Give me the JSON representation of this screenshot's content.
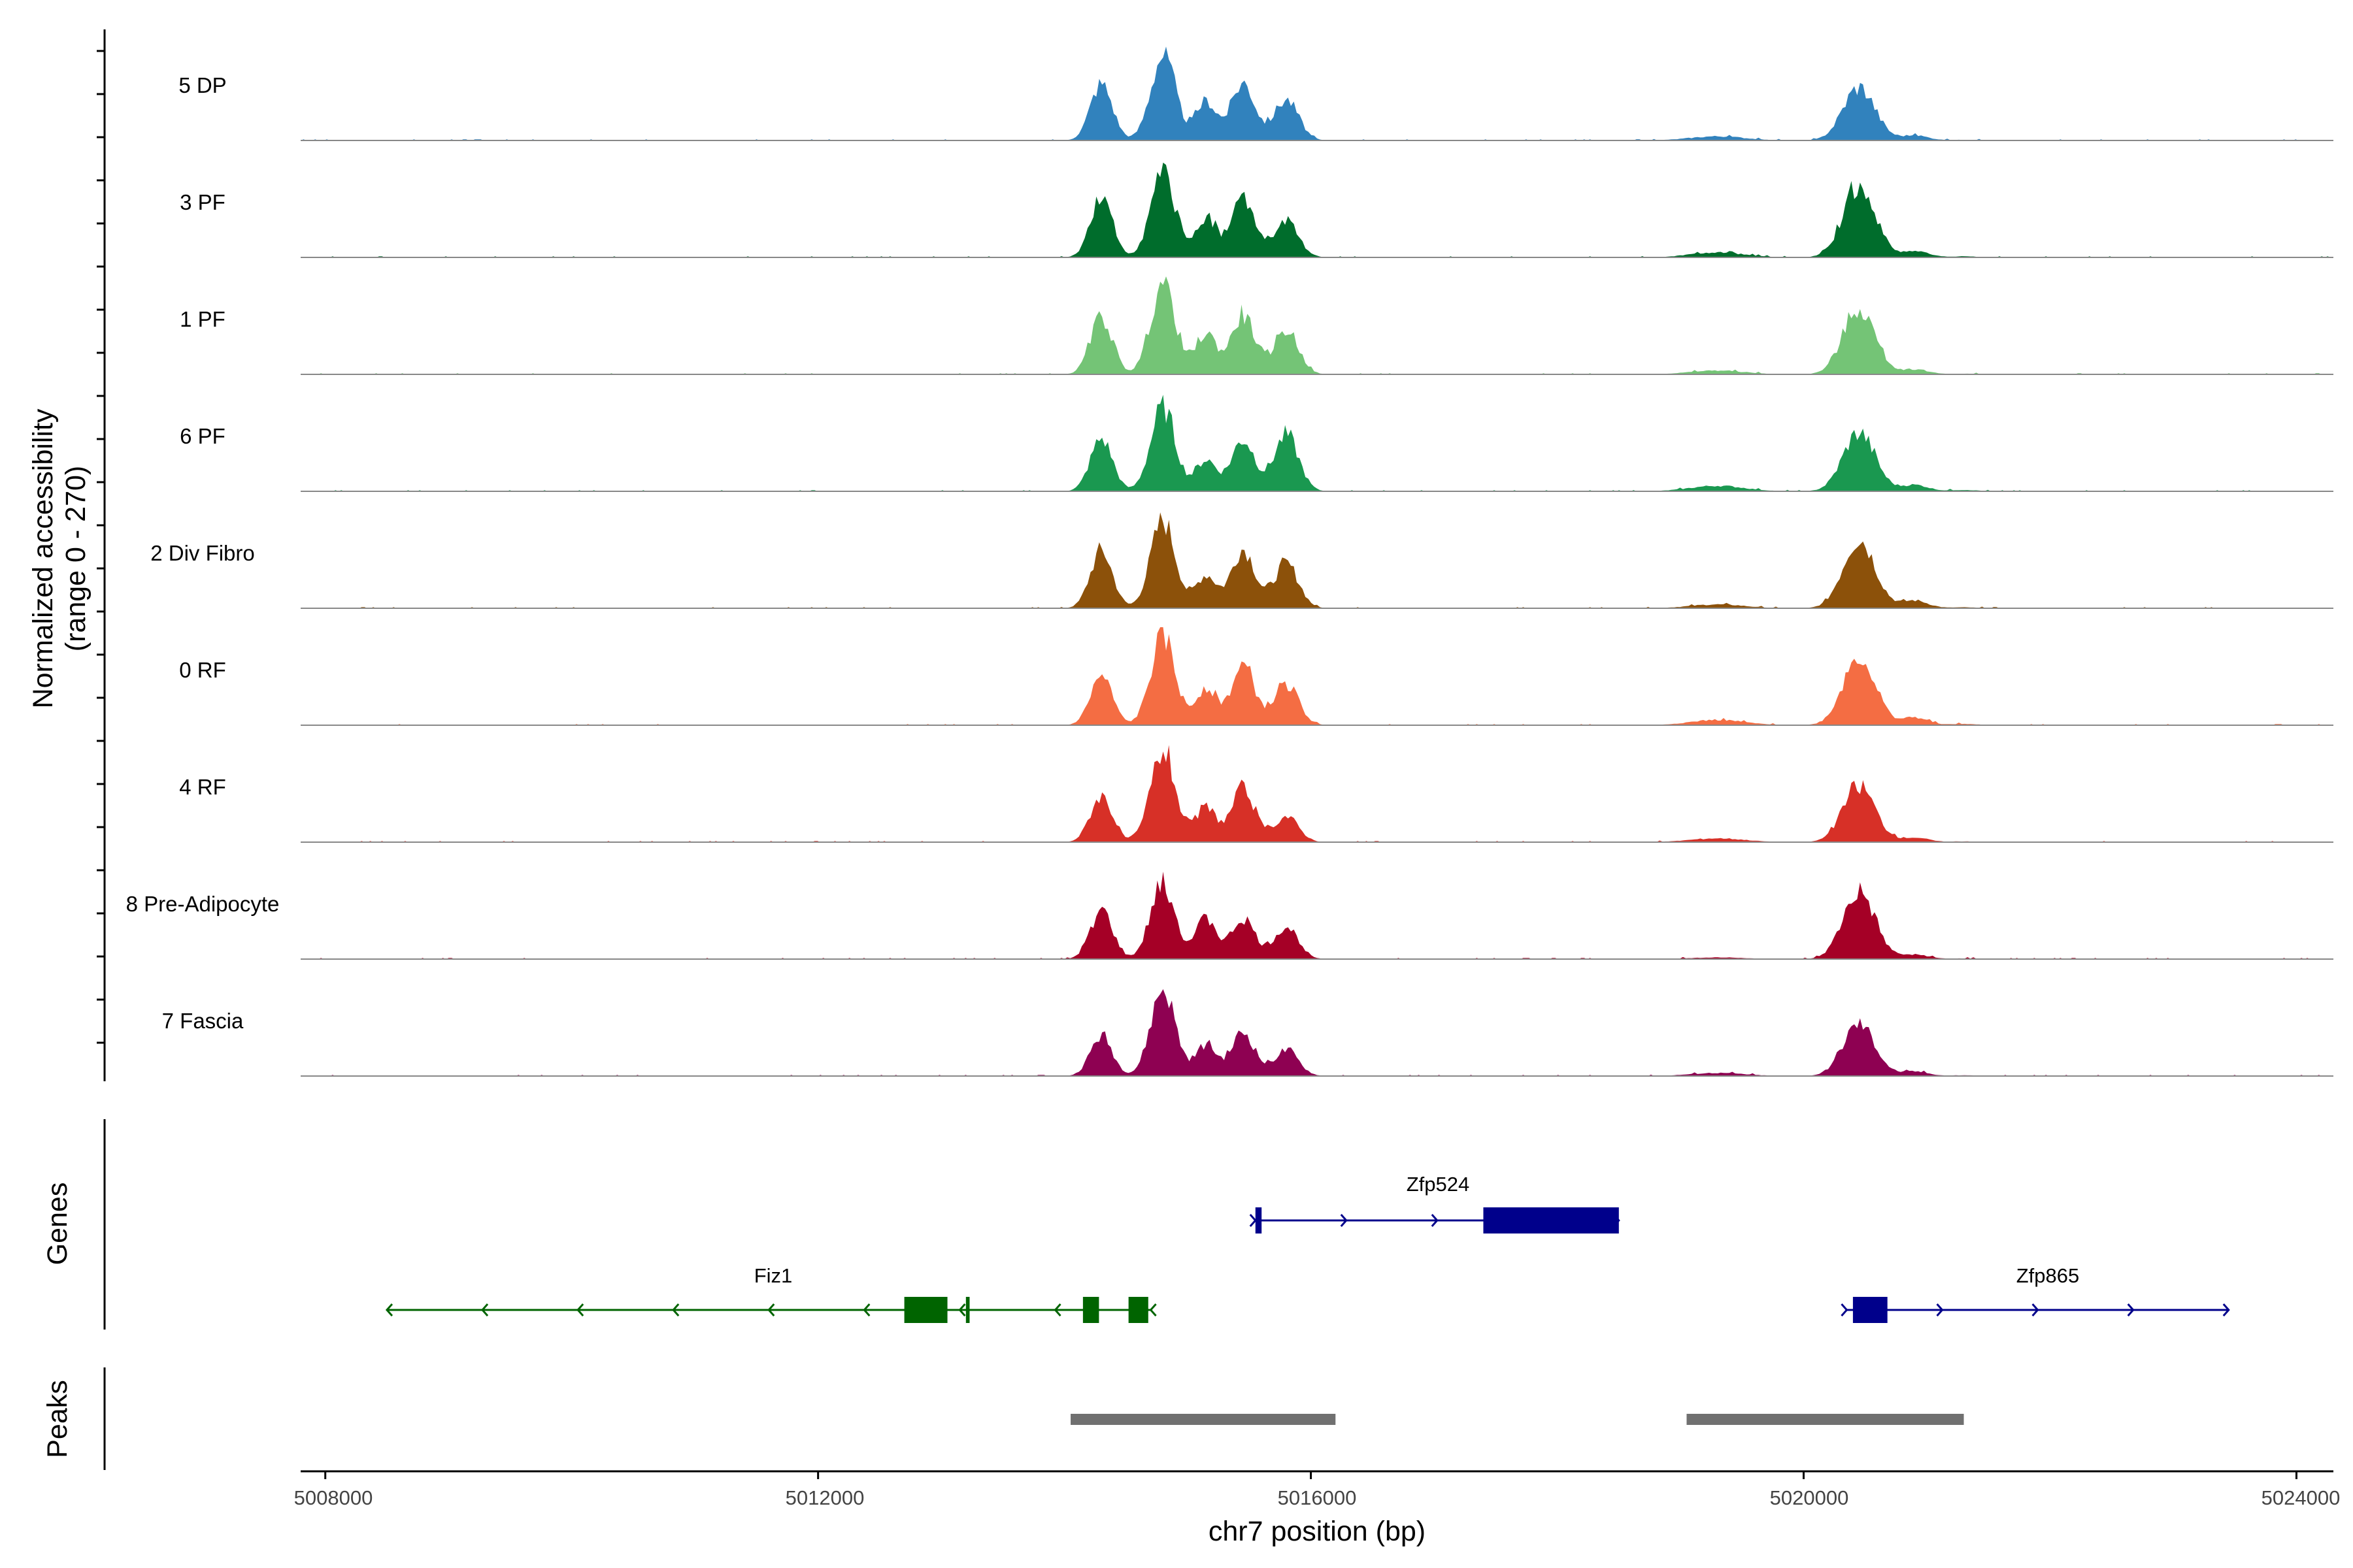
{
  "chart_data": {
    "type": "area",
    "title": "",
    "ylabel": "Normalized accessibility",
    "yrange_label": "(range 0 - 270)",
    "ylim": [
      0,
      270
    ],
    "xlabel": "chr7 position (bp)",
    "xlim": [
      5007800,
      5024300
    ],
    "xticks": [
      "5008000",
      "5012000",
      "5016000",
      "5020000",
      "5024000"
    ],
    "xtick_values": [
      5008000,
      5012000,
      5016000,
      5020000,
      5024000
    ],
    "tracks": [
      {
        "name": "5 DP",
        "color": "#3182BD",
        "peak_scale": [
          1.0,
          0.98,
          0.78,
          0.9,
          0.72,
          0.38,
          0.78,
          0.28,
          0.1
        ]
      },
      {
        "name": "3 PF",
        "color": "#006D2C",
        "peak_scale": [
          1.0,
          0.95,
          0.8,
          0.92,
          0.62,
          0.45,
          1.05,
          0.35,
          0.18
        ]
      },
      {
        "name": "1 PF",
        "color": "#74C476",
        "peak_scale": [
          1.0,
          1.05,
          0.8,
          0.92,
          0.78,
          0.35,
          0.95,
          0.28,
          0.1
        ]
      },
      {
        "name": "6 PF",
        "color": "#1A9850",
        "peak_scale": [
          0.92,
          0.95,
          0.62,
          0.8,
          0.98,
          0.5,
          0.85,
          0.35,
          0.22
        ]
      },
      {
        "name": "2 Div Fibro",
        "color": "#8C510A",
        "peak_scale": [
          1.0,
          1.0,
          0.65,
          0.92,
          0.78,
          0.35,
          1.0,
          0.42,
          0.15
        ]
      },
      {
        "name": "0 RF",
        "color": "#F46D43",
        "peak_scale": [
          0.85,
          1.0,
          0.75,
          0.92,
          0.72,
          0.48,
          1.0,
          0.42,
          0.2
        ]
      },
      {
        "name": "4 RF",
        "color": "#D73027",
        "peak_scale": [
          0.82,
          1.05,
          0.68,
          0.82,
          0.45,
          0.35,
          0.82,
          0.25,
          0.12
        ]
      },
      {
        "name": "8 Pre-Adipocyte",
        "color": "#A50026",
        "peak_scale": [
          0.85,
          0.85,
          0.8,
          0.62,
          0.55,
          0.15,
          0.95,
          0.25,
          0.1
        ]
      },
      {
        "name": "7 Fascia",
        "color": "#8E0152",
        "peak_scale": [
          0.7,
          1.0,
          0.62,
          0.68,
          0.45,
          0.28,
          0.75,
          0.25,
          0.12
        ]
      }
    ],
    "peak_centers": [
      5014300,
      5014800,
      5015150,
      5015450,
      5015800,
      5019300,
      5020450,
      5020900,
      5021300
    ],
    "genes": [
      {
        "name": "Fiz1",
        "strand": "-",
        "start": 5008500,
        "end": 5014700,
        "color": "#006400",
        "exons": [
          [
            5012700,
            5013050
          ],
          [
            5013200,
            5013230
          ],
          [
            5014150,
            5014280
          ],
          [
            5014520,
            5014680
          ]
        ]
      },
      {
        "name": "Zfp524",
        "strand": "+",
        "start": 5015550,
        "end": 5018500,
        "color": "#00008B",
        "exons": [
          [
            5015550,
            5015600
          ],
          [
            5017400,
            5018500
          ]
        ]
      },
      {
        "name": "Zfp865",
        "strand": "+",
        "start": 5020350,
        "end": 5023450,
        "color": "#00008B",
        "exons": [
          [
            5020400,
            5020680
          ]
        ]
      }
    ],
    "peaks_track_label": "Peaks",
    "genes_track_label": "Genes",
    "peaks": [
      [
        5014050,
        5016200
      ],
      [
        5019050,
        5021300
      ]
    ]
  }
}
